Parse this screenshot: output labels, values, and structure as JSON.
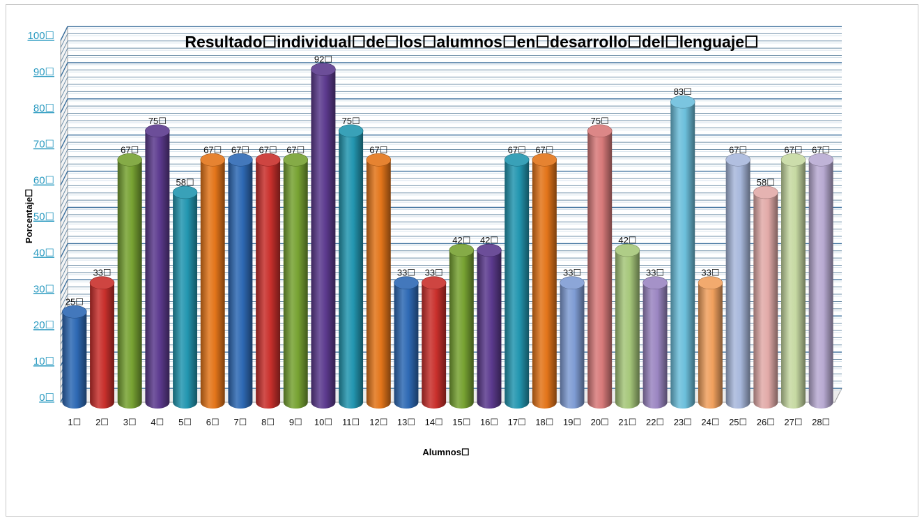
{
  "chart_data": {
    "type": "bar",
    "title": "Resultado☐individual☐de☐los☐alumnos☐en☐desarrollo☐del☐lenguaje☐",
    "xlabel": "Alumnos☐",
    "ylabel": "Porcentaje☐",
    "ylim": [
      0,
      100
    ],
    "yticks": [
      "0☐",
      "10☐",
      "20☐",
      "30☐",
      "40☐",
      "50☐",
      "60☐",
      "70☐",
      "80☐",
      "90☐",
      "100☐"
    ],
    "categories": [
      "1☐",
      "2☐",
      "3☐",
      "4☐",
      "5☐",
      "6☐",
      "7☐",
      "8☐",
      "9☐",
      "10☐",
      "11☐",
      "12☐",
      "13☐",
      "14☐",
      "15☐",
      "16☐",
      "17☐",
      "18☐",
      "19☐",
      "20☐",
      "21☐",
      "22☐",
      "23☐",
      "24☐",
      "25☐",
      "26☐",
      "27☐",
      "28☐"
    ],
    "values": [
      25,
      33,
      67,
      75,
      58,
      67,
      67,
      67,
      67,
      92,
      75,
      67,
      33,
      33,
      42,
      42,
      67,
      67,
      33,
      75,
      42,
      33,
      83,
      33,
      67,
      58,
      67,
      67
    ],
    "data_labels": [
      "25☐",
      "33☐",
      "67☐",
      "75☐",
      "58☐",
      "67☐",
      "67☐",
      "67☐",
      "67☐",
      "92☐",
      "75☐",
      "67☐",
      "33☐",
      "33☐",
      "42☐",
      "42☐",
      "67☐",
      "67☐",
      "33☐",
      "75☐",
      "42☐",
      "33☐",
      "83☐",
      "33☐",
      "67☐",
      "58☐",
      "67☐",
      "67☐"
    ],
    "colors": [
      "#2e69b4",
      "#c9302c",
      "#77a232",
      "#5c3a8e",
      "#2396b0",
      "#e3751a",
      "#2e69b4",
      "#c9302c",
      "#77a232",
      "#5c3a8e",
      "#2396b0",
      "#e3751a",
      "#2e69b4",
      "#c9302c",
      "#77a232",
      "#5c3a8e",
      "#2396b0",
      "#e3751a",
      "#7f9cd4",
      "#d87a7a",
      "#a6c77a",
      "#9b86c2",
      "#6cbfdc",
      "#f0a05e",
      "#a8b8dc",
      "#e2aaa8",
      "#c6d9a2",
      "#b8aad2"
    ],
    "grid": true,
    "legend": "none"
  }
}
